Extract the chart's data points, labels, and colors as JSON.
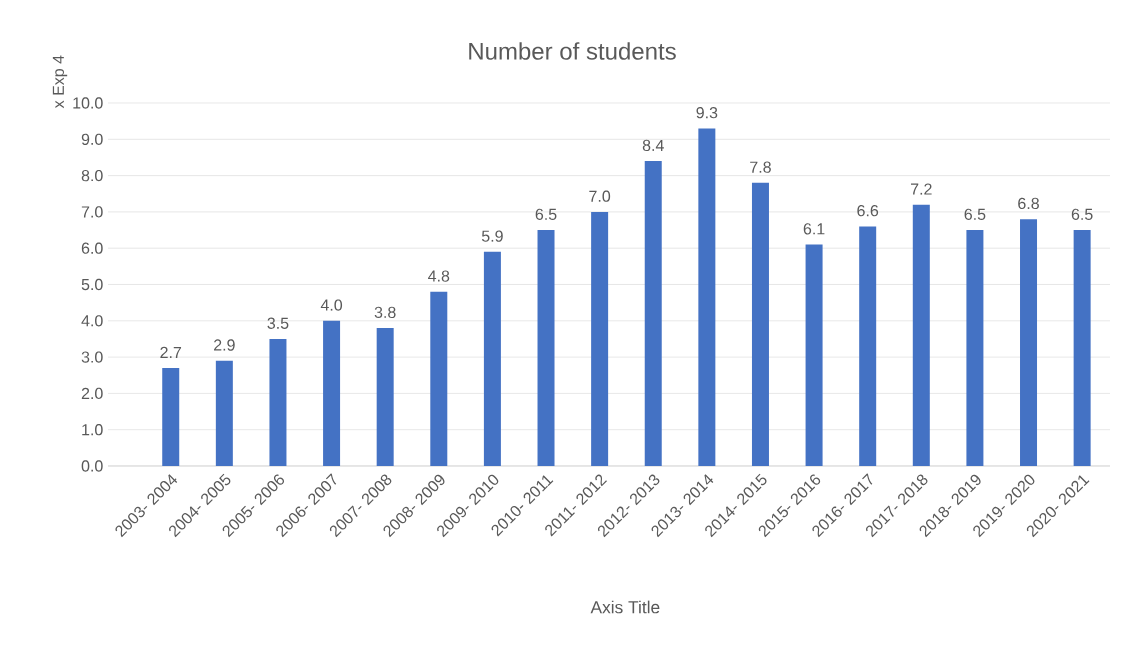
{
  "chart_data": {
    "type": "bar",
    "title": "Number of students",
    "xlabel": "Axis Title",
    "ylabel": "x Exp 4",
    "categories": [
      "2003- 2004",
      "2004- 2005",
      "2005- 2006",
      "2006- 2007",
      "2007- 2008",
      "2008- 2009",
      "2009- 2010",
      "2010- 2011",
      "2011- 2012",
      "2012- 2013",
      "2013- 2014",
      "2014- 2015",
      "2015- 2016",
      "2016- 2017",
      "2017- 2018",
      "2018- 2019",
      "2019- 2020",
      "2020- 2021"
    ],
    "values": [
      2.7,
      2.9,
      3.5,
      4.0,
      3.8,
      4.8,
      5.9,
      6.5,
      7.0,
      8.4,
      9.3,
      7.8,
      6.1,
      6.6,
      7.2,
      6.5,
      6.8,
      6.5
    ],
    "value_labels": [
      "2.7",
      "2.9",
      "3.5",
      "4.0",
      "3.8",
      "4.8",
      "5.9",
      "6.5",
      "7.0",
      "8.4",
      "9.3",
      "7.8",
      "6.1",
      "6.6",
      "7.2",
      "6.5",
      "6.8",
      "6.5"
    ],
    "color": "#4472c4",
    "ylim": [
      0,
      10
    ],
    "yticks": [
      {
        "value": 0,
        "label": "0.0"
      },
      {
        "value": 1,
        "label": "1.0"
      },
      {
        "value": 2,
        "label": "2.0"
      },
      {
        "value": 3,
        "label": "3.0"
      },
      {
        "value": 4,
        "label": "4.0"
      },
      {
        "value": 5,
        "label": "5.0"
      },
      {
        "value": 6,
        "label": "6.0"
      },
      {
        "value": 7,
        "label": "7.0"
      },
      {
        "value": 8,
        "label": "8.0"
      },
      {
        "value": 9,
        "label": "9.0"
      },
      {
        "value": 10,
        "label": "10.0"
      }
    ],
    "grid": "y"
  }
}
